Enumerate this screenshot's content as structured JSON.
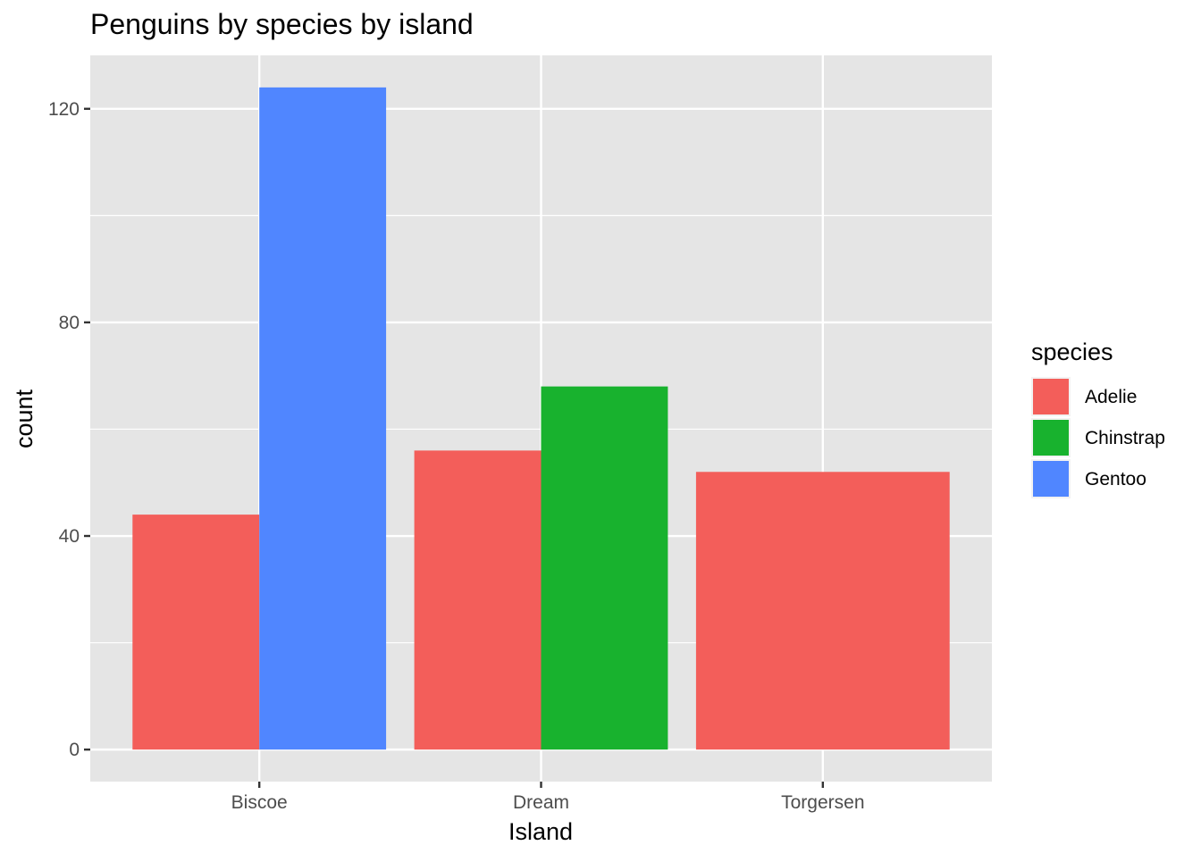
{
  "chart_data": {
    "type": "bar",
    "title": "Penguins by species by island",
    "xlabel": "Island",
    "ylabel": "count",
    "categories": [
      "Biscoe",
      "Dream",
      "Torgersen"
    ],
    "ylim": [
      -6,
      130
    ],
    "yticks": [
      0,
      40,
      80,
      120
    ],
    "ytick_labels": [
      "0",
      "40",
      "80",
      "120"
    ],
    "grid": true,
    "legend": {
      "title": "species",
      "position": "right",
      "entries": [
        "Adelie",
        "Chinstrap",
        "Gentoo"
      ]
    },
    "series": [
      {
        "name": "Adelie",
        "color": "#F35E5A",
        "values": [
          44,
          56,
          52
        ]
      },
      {
        "name": "Chinstrap",
        "color": "#18B22E",
        "values": [
          null,
          68,
          null
        ]
      },
      {
        "name": "Gentoo",
        "color": "#5086FF",
        "values": [
          124,
          null,
          null
        ]
      }
    ],
    "panel_background": "#E5E5E5",
    "grid_color": "#FFFFFF"
  }
}
